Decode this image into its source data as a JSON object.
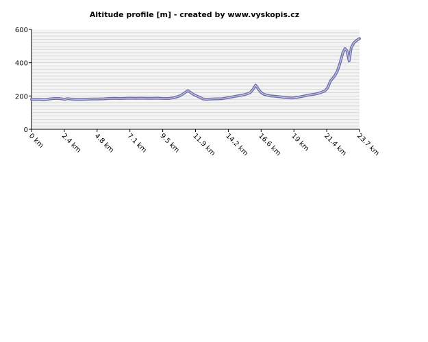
{
  "chart_data": {
    "type": "line",
    "title": "Altitude profile [m] - created by www.vyskopis.cz",
    "xlabel": "",
    "ylabel": "",
    "xlim": [
      0,
      23.7
    ],
    "ylim": [
      0,
      600
    ],
    "y_ticks": [
      0,
      200,
      400,
      600
    ],
    "x_tick_labels": [
      "0 km",
      "2.4 km",
      "4.8 km",
      "7.1 km",
      "9.5 km",
      "11.9 km",
      "14.2 km",
      "16.6 km",
      "19 km",
      "21.4 km",
      "23.7 km"
    ],
    "x_tick_values": [
      0,
      2.37,
      4.74,
      7.11,
      9.48,
      11.85,
      14.22,
      16.59,
      18.96,
      21.33,
      23.7
    ],
    "grid": true,
    "colors": {
      "line": "#7070a8",
      "line_core": "#c8c8e8",
      "grid": "#d8d8d8",
      "plot_bg": "#f4f4f4"
    },
    "series": [
      {
        "x": [
          0,
          0.5,
          1.0,
          1.3,
          1.6,
          2.0,
          2.4,
          2.6,
          2.8,
          3.2,
          3.6,
          4.0,
          4.4,
          4.8,
          5.2,
          5.6,
          6.0,
          6.4,
          6.8,
          7.1,
          7.5,
          7.9,
          8.3,
          8.7,
          9.1,
          9.5,
          9.9,
          10.3,
          10.7,
          11.0,
          11.3,
          11.6,
          11.8,
          12.0,
          12.2,
          12.4,
          12.6,
          12.8,
          13.0,
          13.4,
          13.8,
          14.2,
          14.6,
          15.0,
          15.4,
          15.8,
          16.0,
          16.2,
          16.4,
          16.6,
          16.8,
          17.0,
          17.3,
          17.6,
          18.0,
          18.4,
          18.8,
          19.2,
          19.6,
          20.0,
          20.4,
          20.8,
          21.2,
          21.4,
          21.6,
          21.9,
          22.1,
          22.3,
          22.5,
          22.65,
          22.8,
          22.95,
          23.1,
          23.3,
          23.5,
          23.7
        ],
        "values": [
          180,
          180,
          178,
          182,
          185,
          185,
          180,
          184,
          182,
          180,
          180,
          181,
          182,
          182,
          183,
          185,
          186,
          185,
          186,
          187,
          186,
          187,
          186,
          186,
          187,
          185,
          185,
          190,
          200,
          215,
          232,
          215,
          205,
          198,
          190,
          182,
          180,
          181,
          182,
          183,
          184,
          190,
          196,
          202,
          208,
          220,
          240,
          265,
          240,
          220,
          210,
          205,
          200,
          198,
          195,
          190,
          188,
          192,
          198,
          205,
          210,
          218,
          230,
          250,
          290,
          320,
          350,
          400,
          460,
          485,
          470,
          410,
          490,
          520,
          535,
          545
        ]
      }
    ]
  }
}
